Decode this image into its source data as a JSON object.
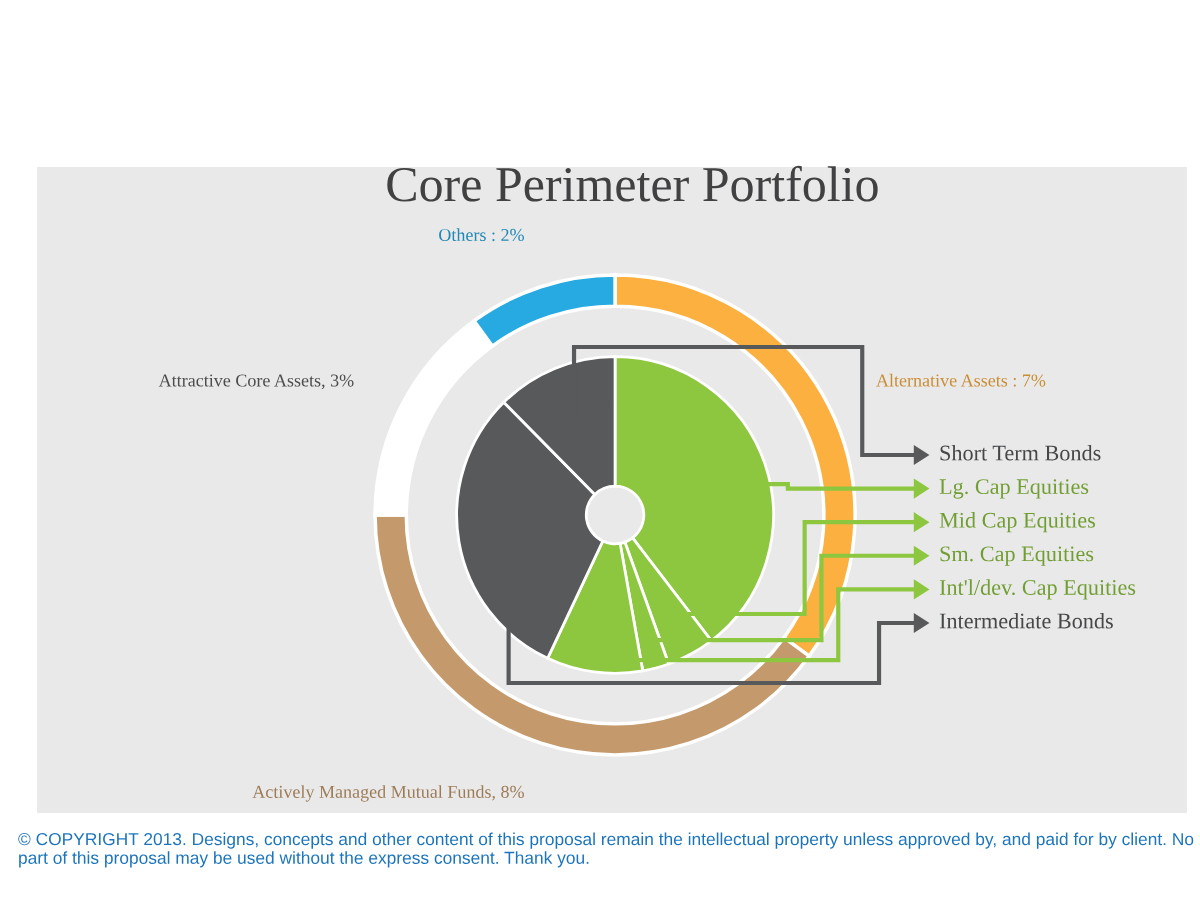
{
  "chart_data": {
    "type": "donut",
    "title": "Core Perimeter Portfolio",
    "legend": "right",
    "categories": [
      "Alternative Assets : 7%",
      "Actively Managed Mutual Funds, 8%",
      "Attractive Core Assets, 3%",
      "Others : 2%",
      "Lg. Cap Equities",
      "Mid Cap Equities",
      "Sm. Cap Equities",
      "Int'l/dev. Cap Equities",
      "Intermediate Bonds",
      "Short Term Bonds"
    ],
    "colors": [
      "#fbb040",
      "#c49a6c",
      "#ffffff",
      "#27aae1",
      "#8dc63f",
      "#8dc63f",
      "#8dc63f",
      "#8dc63f",
      "#58595b",
      "#58595b"
    ],
    "series": [
      {
        "values": [
          7,
          8,
          3,
          2,
          null,
          null,
          null,
          null,
          null,
          null
        ]
      },
      {
        "values": [
          null,
          null,
          null,
          null,
          39.6,
          4.9,
          2.7,
          9.8,
          30.6,
          12.4
        ]
      }
    ],
    "annotations": [
      "© COPYRIGHT 2013. Designs, concepts and other content of this proposal remain the intellectual property unless approved by, and paid for by client. No part of this proposal may be used without the express consent. Thank you."
    ]
  }
}
